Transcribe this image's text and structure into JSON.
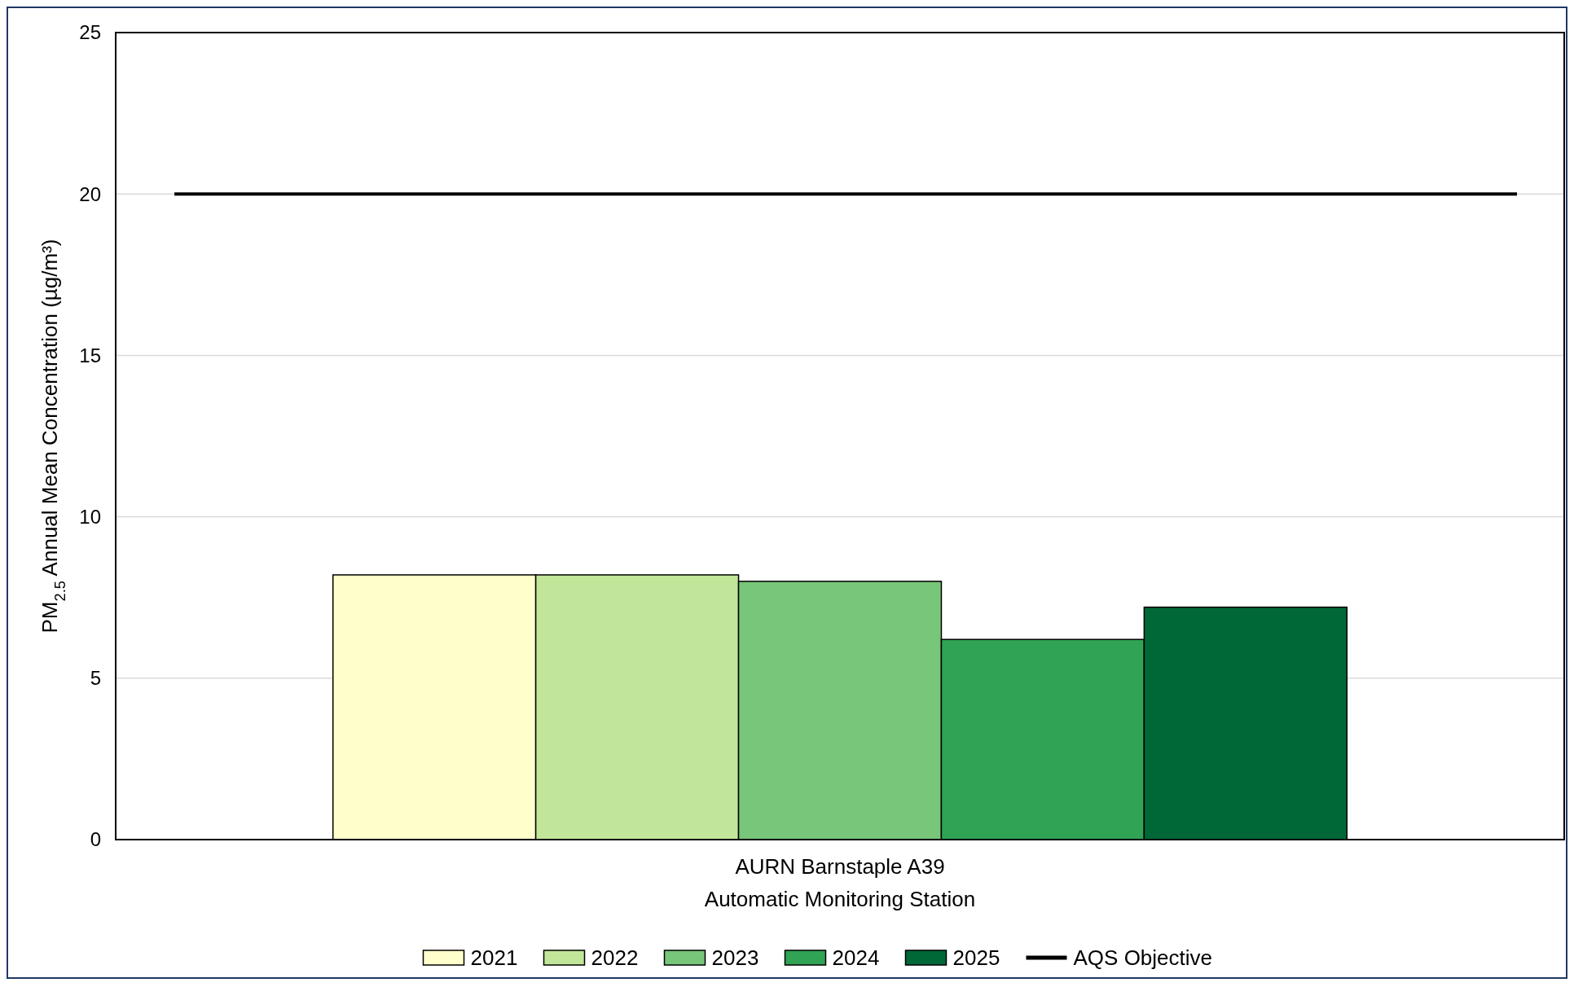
{
  "chart_data": {
    "type": "bar",
    "ylabel": "PM$_{2.5}$ Annual Mean Concentration (µg/m³)",
    "categories": [
      "AURN Barnstaple A39\nAutomatic Monitoring Station"
    ],
    "series": [
      {
        "name": "2021",
        "color": "#ffffcc",
        "values": [
          8.2
        ]
      },
      {
        "name": "2022",
        "color": "#c2e699",
        "values": [
          8.2
        ]
      },
      {
        "name": "2023",
        "color": "#78c679",
        "values": [
          8.0
        ]
      },
      {
        "name": "2024",
        "color": "#31a354",
        "values": [
          6.2
        ]
      },
      {
        "name": "2025",
        "color": "#006837",
        "values": [
          7.2
        ]
      }
    ],
    "ref_lines": [
      {
        "axis": "y",
        "value": 20,
        "label": "AQS Objective",
        "color": "#000000",
        "line_style": "solid"
      }
    ],
    "ylim": [
      0,
      25
    ],
    "yticks": [
      0,
      5,
      10,
      15,
      20,
      25
    ],
    "grid": "y",
    "legend": "bottom"
  }
}
